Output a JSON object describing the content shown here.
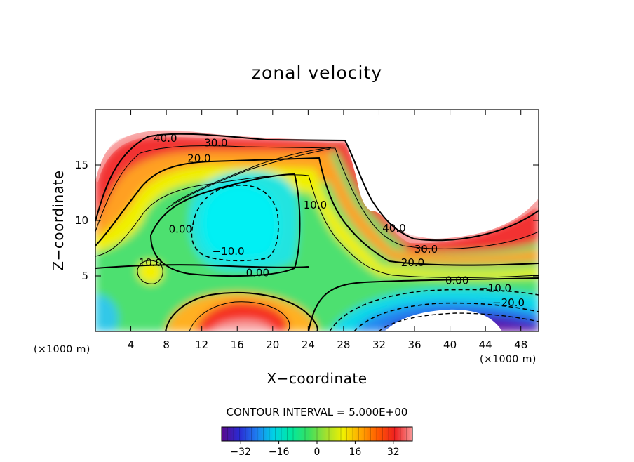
{
  "chart_data": {
    "type": "contour",
    "title": "zonal velocity",
    "xlabel": "X−coordinate",
    "ylabel": "Z−coordinate",
    "x_unit_label": "(×1000 m)",
    "y_unit_label": "(×1000 m)",
    "xlim": [
      0,
      50
    ],
    "ylim": [
      0,
      20
    ],
    "x_ticks": [
      4,
      8,
      12,
      16,
      20,
      24,
      28,
      32,
      36,
      40,
      44,
      48
    ],
    "y_ticks": [
      5,
      10,
      15
    ],
    "contour_interval_text": "CONTOUR INTERVAL = 5.000E+00",
    "colorbar": {
      "range": [
        -40,
        40
      ],
      "ticks": [
        -32,
        -16,
        0,
        16,
        32
      ],
      "tick_labels": [
        "−32",
        "−16",
        "0",
        "16",
        "32"
      ],
      "colors": [
        "#5a0a8a",
        "#2a2ad2",
        "#1e7cf0",
        "#00d2e6",
        "#00e8a0",
        "#38e060",
        "#a0e030",
        "#f0f000",
        "#ffa800",
        "#ff5a00",
        "#ee2020",
        "#f89898"
      ]
    },
    "contour_labels": [
      {
        "text": "40.0",
        "x": 7.9,
        "z": 17.4
      },
      {
        "text": "30.0",
        "x": 13.6,
        "z": 17.0
      },
      {
        "text": "20.0",
        "x": 11.7,
        "z": 15.6
      },
      {
        "text": "10.0",
        "x": 24.8,
        "z": 11.4
      },
      {
        "text": "0.00",
        "x": 9.6,
        "z": 9.2
      },
      {
        "text": "−10.0",
        "x": 15.0,
        "z": 7.2
      },
      {
        "text": "0.00",
        "x": 18.3,
        "z": 5.3
      },
      {
        "text": "10.0",
        "x": 6.2,
        "z": 6.2
      },
      {
        "text": "40.0",
        "x": 33.7,
        "z": 9.3
      },
      {
        "text": "30.0",
        "x": 37.3,
        "z": 7.4
      },
      {
        "text": "20.0",
        "x": 35.8,
        "z": 6.2
      },
      {
        "text": "0.00",
        "x": 40.8,
        "z": 4.6
      },
      {
        "text": "−10.0",
        "x": 45.1,
        "z": 3.9
      },
      {
        "text": "−20.0",
        "x": 46.6,
        "z": 2.6
      }
    ],
    "regions": [
      {
        "name": "upper-wind-maximum-left",
        "value": 40
      },
      {
        "name": "mid-level-negative-core",
        "value": -10
      },
      {
        "name": "low-level-positive-jet",
        "value": 40
      },
      {
        "name": "upper-wind-maximum-right",
        "value": 40
      },
      {
        "name": "low-level-negative-core",
        "value": -40
      }
    ]
  }
}
